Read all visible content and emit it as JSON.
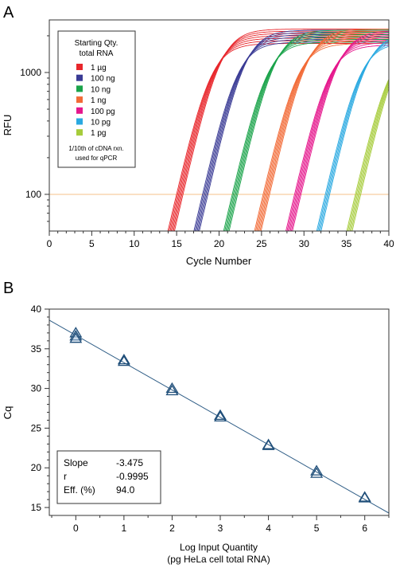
{
  "chart_data": [
    {
      "panel_label": "A",
      "type": "line",
      "xlabel": "Cycle Number",
      "ylabel": "RFU",
      "xlim": [
        0,
        40
      ],
      "ylim": [
        50,
        2700
      ],
      "y_scale": "log",
      "xticks": [
        0,
        5,
        10,
        15,
        20,
        25,
        30,
        35,
        40
      ],
      "yticks": [
        100,
        1000
      ],
      "threshold": 100,
      "threshold_color": "#f5c28a",
      "plateau": 2000,
      "legend": {
        "title_lines": [
          "Starting Qty.",
          "total RNA"
        ],
        "footnote_lines": [
          "1/10th of cDNA rxn.",
          "used for qPCR"
        ],
        "placement": "top-left"
      },
      "series": [
        {
          "name": "1 µg",
          "color": "#e8262b",
          "cq": 15.3,
          "replicates": 7
        },
        {
          "name": "100 ng",
          "color": "#3a3b95",
          "cq": 18.3,
          "replicates": 6
        },
        {
          "name": "10 ng",
          "color": "#1aa34a",
          "cq": 21.8,
          "replicates": 6
        },
        {
          "name": "1 ng",
          "color": "#f26a36",
          "cq": 25.5,
          "replicates": 7
        },
        {
          "name": "100 pg",
          "color": "#e5168c",
          "cq": 29.2,
          "replicates": 7
        },
        {
          "name": "10 pg",
          "color": "#29a9e1",
          "cq": 32.7,
          "replicates": 5
        },
        {
          "name": "1 pg",
          "color": "#a6cc3b",
          "cq": 36.3,
          "replicates": 6
        }
      ]
    },
    {
      "panel_label": "B",
      "type": "scatter",
      "xlabel_lines": [
        "Log Input Quantity",
        "(pg HeLa cell total RNA)"
      ],
      "ylabel": "Cq",
      "xlim": [
        -0.55,
        6.5
      ],
      "ylim": [
        14,
        40
      ],
      "xticks": [
        0,
        1,
        2,
        3,
        4,
        5,
        6
      ],
      "yticks": [
        15,
        20,
        25,
        30,
        35,
        40
      ],
      "fit_line": {
        "x": [
          -0.55,
          6.5
        ],
        "y": [
          38.6,
          14.3
        ]
      },
      "points": [
        {
          "x": 0,
          "y": [
            37.0,
            36.6,
            36.3
          ]
        },
        {
          "x": 1,
          "y": [
            33.6,
            33.4
          ]
        },
        {
          "x": 2,
          "y": [
            30.0,
            29.7
          ]
        },
        {
          "x": 3,
          "y": [
            26.6,
            26.4
          ]
        },
        {
          "x": 4,
          "y": [
            22.9,
            22.8
          ]
        },
        {
          "x": 5,
          "y": [
            19.6,
            19.3
          ]
        },
        {
          "x": 6,
          "y": [
            16.3,
            16.2
          ]
        }
      ],
      "marker_color": "#1f4e79",
      "stats": [
        {
          "label": "Slope",
          "value": "-3.475"
        },
        {
          "label": "r",
          "value": "-0.9995"
        },
        {
          "label": "Eff. (%)",
          "value": "94.0"
        }
      ]
    }
  ]
}
